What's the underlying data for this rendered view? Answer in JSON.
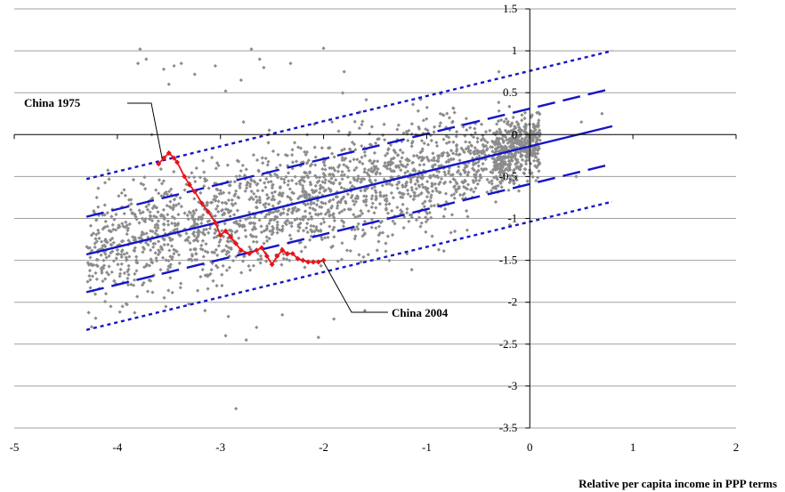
{
  "chart_data": {
    "type": "scatter",
    "title": "",
    "xlabel": "Relative per capita income in PPP terms",
    "ylabel": "",
    "xlim": [
      -5,
      2
    ],
    "ylim": [
      -3.5,
      1.5
    ],
    "x_ticks": [
      "-5",
      "-4",
      "-3",
      "-2",
      "-1",
      "0",
      "1",
      "2"
    ],
    "y_ticks": [
      "1.5",
      "1",
      "0.5",
      "0",
      "-0.5",
      "-1",
      "-1.5",
      "-2",
      "-2.5",
      "-3",
      "-3.5"
    ],
    "grid": "horizontal",
    "colors": {
      "scatter": "#8c8c8c",
      "china_path": "#e8141b",
      "fit_lines": "#1515c8",
      "grid": "#a0a0a0"
    },
    "regression": {
      "x_range": [
        -4.3,
        0.8
      ],
      "slope": 0.3,
      "intercept": -0.14
    },
    "bands": [
      {
        "offset": 0.45,
        "style": "long-dash"
      },
      {
        "offset": -0.45,
        "style": "long-dash"
      },
      {
        "offset": 0.9,
        "style": "dotted"
      },
      {
        "offset": -0.9,
        "style": "dotted"
      }
    ],
    "china_path": {
      "x": [
        -3.6,
        -3.55,
        -3.5,
        -3.45,
        -3.42,
        -3.35,
        -3.3,
        -3.25,
        -3.18,
        -3.12,
        -3.05,
        -3.0,
        -2.95,
        -2.9,
        -2.85,
        -2.8,
        -2.72,
        -2.65,
        -2.6,
        -2.55,
        -2.5,
        -2.45,
        -2.4,
        -2.35,
        -2.3,
        -2.25,
        -2.2,
        -2.15,
        -2.1,
        -2.05,
        -2.0
      ],
      "y": [
        -0.35,
        -0.28,
        -0.22,
        -0.28,
        -0.33,
        -0.5,
        -0.6,
        -0.68,
        -0.82,
        -0.92,
        -1.05,
        -1.2,
        -1.15,
        -1.22,
        -1.3,
        -1.38,
        -1.42,
        -1.38,
        -1.35,
        -1.45,
        -1.55,
        -1.45,
        -1.38,
        -1.42,
        -1.42,
        -1.48,
        -1.5,
        -1.52,
        -1.52,
        -1.52,
        -1.5
      ]
    },
    "annotations": [
      {
        "text": "China 1975",
        "x": -3.6,
        "y": -0.35
      },
      {
        "text": "China 2004",
        "x": -2.0,
        "y": -1.5
      }
    ],
    "scatter_spec": {
      "count": 2400,
      "x_range": [
        -4.3,
        0.8
      ],
      "noise_sd": 0.34,
      "seed": 7
    },
    "outliers": [
      [
        -3.78,
        1.02
      ],
      [
        -3.8,
        0.85
      ],
      [
        -3.72,
        0.9
      ],
      [
        -3.55,
        0.78
      ],
      [
        -3.45,
        0.82
      ],
      [
        -3.38,
        0.85
      ],
      [
        -3.25,
        0.72
      ],
      [
        -3.05,
        0.82
      ],
      [
        -2.95,
        0.52
      ],
      [
        -2.7,
        1.02
      ],
      [
        -2.62,
        0.9
      ],
      [
        -2.58,
        0.8
      ],
      [
        -2.32,
        0.85
      ],
      [
        -2.0,
        1.03
      ],
      [
        -1.8,
        0.75
      ],
      [
        -2.8,
        0.65
      ],
      [
        -3.5,
        0.6
      ],
      [
        -0.3,
        0.75
      ],
      [
        -2.85,
        -3.27
      ],
      [
        -2.75,
        -2.45
      ],
      [
        -2.95,
        -2.4
      ],
      [
        -2.05,
        -2.42
      ],
      [
        -2.65,
        -2.3
      ],
      [
        -1.9,
        -2.2
      ],
      [
        -3.95,
        -2.05
      ],
      [
        -4.15,
        -1.65
      ],
      [
        -4.25,
        -1.2
      ],
      [
        -4.2,
        -0.75
      ],
      [
        -1.6,
        -2.1
      ],
      [
        -2.4,
        -2.15
      ],
      [
        -3.15,
        -2.1
      ],
      [
        0.5,
        0.15
      ],
      [
        0.45,
        -0.5
      ],
      [
        0.7,
        0.25
      ]
    ]
  }
}
